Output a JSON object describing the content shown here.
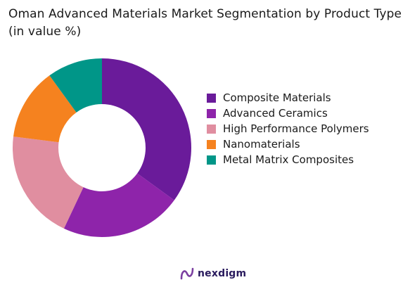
{
  "header": {
    "title": "Oman Advanced Materials Market Segmentation by Product Type (in value %)"
  },
  "chart_data": {
    "type": "pie",
    "variant": "donut",
    "title": "Oman Advanced Materials Market Segmentation by Product Type (in value %)",
    "categories": [
      "Composite Materials",
      "Advanced Ceramics",
      "High Performance Polymers",
      "Nanomaterials",
      "Metal Matrix Composites"
    ],
    "values": [
      35,
      22,
      20,
      13,
      10
    ],
    "colors": [
      "#6a1b9a",
      "#8e24aa",
      "#e08ea0",
      "#f5821f",
      "#009688"
    ],
    "legend_position": "right",
    "data_labels": false
  },
  "brand": {
    "name": "nexdigm",
    "icon": "nexdigm-logo-icon"
  }
}
